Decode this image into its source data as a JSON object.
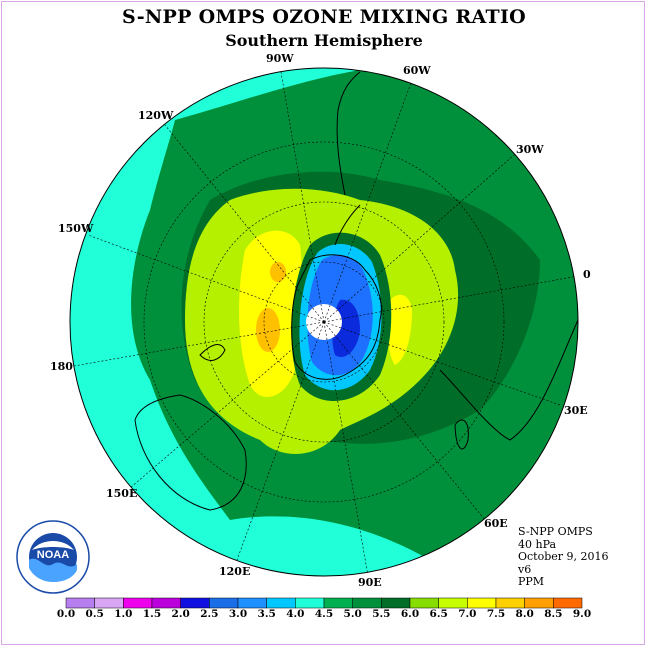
{
  "title": "S-NPP OMPS OZONE MIXING RATIO",
  "subtitle": "Southern Hemisphere",
  "longitude_labels": [
    "90W",
    "60W",
    "30W",
    "0",
    "30E",
    "60E",
    "90E",
    "120E",
    "150E",
    "180",
    "150W",
    "120W"
  ],
  "info": {
    "instrument": "S-NPP OMPS",
    "level": "40 hPa",
    "date": "October 9, 2016",
    "version": "v6",
    "units": "PPM"
  },
  "logo": {
    "name": "NOAA",
    "text": "NOAA"
  },
  "colorbar": {
    "ticks": [
      "0.0",
      "0.5",
      "1.0",
      "1.5",
      "2.0",
      "2.5",
      "3.0",
      "3.5",
      "4.0",
      "4.5",
      "5.0",
      "5.5",
      "6.0",
      "6.5",
      "7.0",
      "7.5",
      "8.0",
      "8.5",
      "9.0"
    ],
    "colors": [
      "#b77ef0",
      "#d9a6f6",
      "#ee00ee",
      "#bb00dd",
      "#1010e0",
      "#1a6ee8",
      "#1e90ff",
      "#00c8ff",
      "#20ffd8",
      "#00b050",
      "#00903c",
      "#006e28",
      "#88dd00",
      "#c8ff00",
      "#ffff00",
      "#ffd000",
      "#ffa000",
      "#ff6a00",
      "#ff0000",
      "#7a4a2a"
    ]
  },
  "colors": {
    "ocean_cyan": "#20ffd8",
    "band_green": "#00903c",
    "deep_green": "#006e28",
    "yellow_green": "#b4f000",
    "yellow": "#ffff00",
    "orange": "#ffc000",
    "light_blue": "#00c8ff",
    "blue": "#1e70ff",
    "deep_blue": "#0a2adc"
  }
}
